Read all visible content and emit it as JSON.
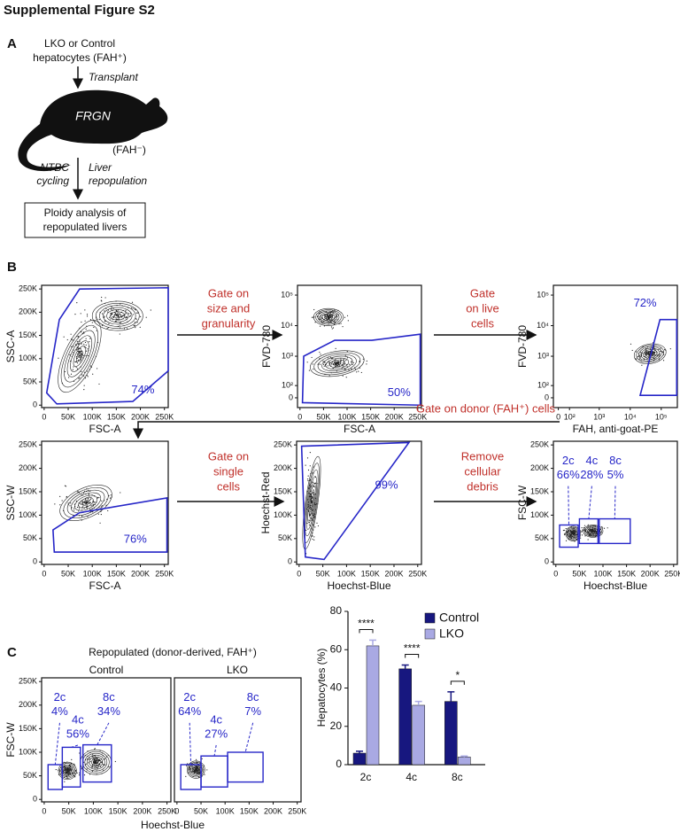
{
  "title": "Supplemental Figure S2",
  "panel_a": {
    "label": "A",
    "source_line1": "LKO or Control",
    "source_line2": "hepatocytes (FAH⁺)",
    "step1": "Transplant",
    "mouse": "FRGN",
    "mouse_genotype": "(FAH⁻)",
    "step2_left": [
      "NTBC",
      "cycling"
    ],
    "step2_right": [
      "Liver",
      "repopulation"
    ],
    "result": [
      "Ploidy analysis of",
      "repopulated livers"
    ]
  },
  "panel_b": {
    "label": "B",
    "plots": [
      {
        "xlabel": "FSC-A",
        "ylabel": "SSC-A",
        "xticks": [
          "0",
          "50K",
          "100K",
          "150K",
          "200K",
          "250K"
        ],
        "yticks": [
          "0",
          "50K",
          "100K",
          "150K",
          "200K",
          "250K"
        ],
        "gates": [
          {
            "pct": "74%"
          }
        ]
      },
      {
        "xlabel": "FSC-A",
        "ylabel": "FVD-780",
        "xticks": [
          "0",
          "50K",
          "100K",
          "150K",
          "200K",
          "250K"
        ],
        "yticks": [
          "0",
          "10²",
          "10³",
          "10⁴",
          "10⁵"
        ],
        "gates": [
          {
            "pct": "50%"
          }
        ]
      },
      {
        "xlabel": "FAH, anti-goat-PE",
        "ylabel": "FVD-780",
        "xticks": [
          "0",
          "10²",
          "10³",
          "10⁴",
          "10⁵"
        ],
        "yticks": [
          "0",
          "10²",
          "10³",
          "10⁴",
          "10⁵"
        ],
        "gates": [
          {
            "pct": "72%"
          }
        ]
      },
      {
        "xlabel": "FSC-A",
        "ylabel": "SSC-W",
        "xticks": [
          "0",
          "50K",
          "100K",
          "150K",
          "200K",
          "250K"
        ],
        "yticks": [
          "0",
          "50K",
          "100K",
          "150K",
          "200K",
          "250K"
        ],
        "gates": [
          {
            "pct": "76%"
          }
        ]
      },
      {
        "xlabel": "Hoechst-Blue",
        "ylabel": "Hoechst-Red",
        "xticks": [
          "0",
          "50K",
          "100K",
          "150K",
          "200K",
          "250K"
        ],
        "yticks": [
          "0",
          "50K",
          "100K",
          "150K",
          "200K",
          "250K"
        ],
        "gates": [
          {
            "pct": "99%"
          }
        ]
      },
      {
        "xlabel": "Hoechst-Blue",
        "ylabel": "FSC-W",
        "xticks": [
          "0",
          "50K",
          "100K",
          "150K",
          "200K",
          "250K"
        ],
        "yticks": [
          "0",
          "50K",
          "100K",
          "150K",
          "200K",
          "250K"
        ],
        "gates": [
          {
            "name": "2c",
            "pct": "66%"
          },
          {
            "name": "4c",
            "pct": "28%"
          },
          {
            "name": "8c",
            "pct": "5%"
          }
        ]
      }
    ],
    "steps": [
      [
        "Gate on",
        "size and",
        "granularity"
      ],
      [
        "Gate",
        "on live",
        "cells"
      ],
      [
        "Gate on donor (FAH⁺) cells"
      ],
      [
        "Gate on",
        "single",
        "cells"
      ],
      [
        "Remove",
        "cellular",
        "debris"
      ]
    ]
  },
  "panel_c": {
    "label": "C",
    "heading": "Repopulated (donor-derived, FAH⁺)",
    "xlabel": "Hoechst-Blue",
    "plots": [
      {
        "title": "Control",
        "ylabel": "FSC-W",
        "xticks": [
          "0",
          "50K",
          "100K",
          "150K",
          "200K",
          "250K"
        ],
        "yticks": [
          "0",
          "50K",
          "100K",
          "150K",
          "200K",
          "250K"
        ],
        "gates": [
          {
            "name": "2c",
            "pct": "4%"
          },
          {
            "name": "4c",
            "pct": "56%"
          },
          {
            "name": "8c",
            "pct": "34%"
          }
        ]
      },
      {
        "title": "LKO",
        "xticks": [
          "0",
          "50K",
          "100K",
          "150K",
          "200K",
          "250K"
        ],
        "gates": [
          {
            "name": "2c",
            "pct": "64%"
          },
          {
            "name": "4c",
            "pct": "27%"
          },
          {
            "name": "8c",
            "pct": "7%"
          }
        ]
      }
    ]
  },
  "chart_data": {
    "type": "bar",
    "ylabel": "Hepatocytes (%)",
    "categories": [
      "2c",
      "4c",
      "8c"
    ],
    "series": [
      {
        "name": "Control",
        "color": "#17177f",
        "values": [
          6,
          50,
          33
        ],
        "errors": [
          1,
          2,
          5
        ]
      },
      {
        "name": "LKO",
        "color": "#a9a9e3",
        "values": [
          62,
          31,
          4
        ],
        "errors": [
          3,
          2,
          0.5
        ]
      }
    ],
    "ylim": [
      0,
      80
    ],
    "yticks": [
      0,
      20,
      40,
      60,
      80
    ],
    "significance": [
      "****",
      "****",
      "*"
    ],
    "legend": "top-right"
  }
}
